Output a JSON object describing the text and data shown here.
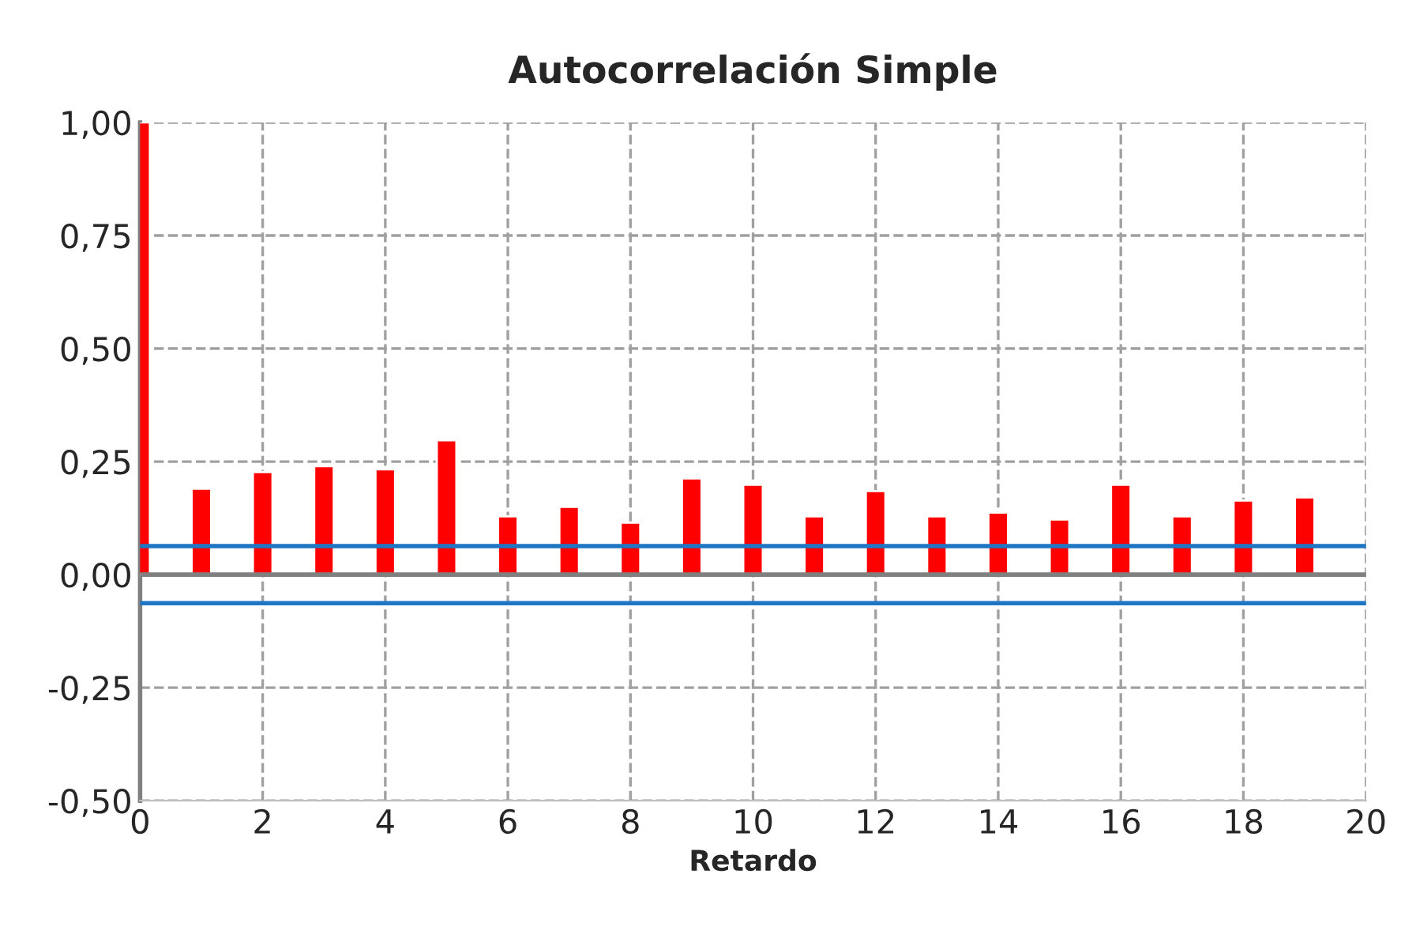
{
  "chart_data": {
    "type": "bar",
    "title": "Autocorrelación Simple",
    "xlabel": "Retardo",
    "x": [
      0,
      1,
      2,
      3,
      4,
      5,
      6,
      7,
      8,
      9,
      10,
      11,
      12,
      13,
      14,
      15,
      16,
      17,
      18,
      19
    ],
    "values": [
      1.0,
      0.19,
      0.227,
      0.24,
      0.233,
      0.297,
      0.129,
      0.15,
      0.115,
      0.213,
      0.199,
      0.129,
      0.185,
      0.129,
      0.137,
      0.122,
      0.199,
      0.129,
      0.164,
      0.171
    ],
    "color": "#ff0000",
    "xlim": [
      0,
      20
    ],
    "xticks": [
      0,
      2,
      4,
      6,
      8,
      10,
      12,
      14,
      16,
      18,
      20
    ],
    "ylim": [
      -0.5,
      1.0
    ],
    "yticks": [
      {
        "value": -0.5,
        "label": "-0,50"
      },
      {
        "value": -0.25,
        "label": "-0,25"
      },
      {
        "value": 0,
        "label": "0,00"
      },
      {
        "value": 0.25,
        "label": "0,25"
      },
      {
        "value": 0.5,
        "label": "0,50"
      },
      {
        "value": 0.75,
        "label": "0,75"
      },
      {
        "value": 1.0,
        "label": "1,00"
      }
    ],
    "ref_lines": [
      {
        "axis": "y",
        "value": 0,
        "label": null,
        "color": "#808080"
      },
      {
        "axis": "y",
        "value": 0.063,
        "label": null,
        "color": "#1f77c4"
      },
      {
        "axis": "y",
        "value": -0.063,
        "label": null,
        "color": "#1f77c4"
      }
    ],
    "grid": true,
    "legend": false
  }
}
